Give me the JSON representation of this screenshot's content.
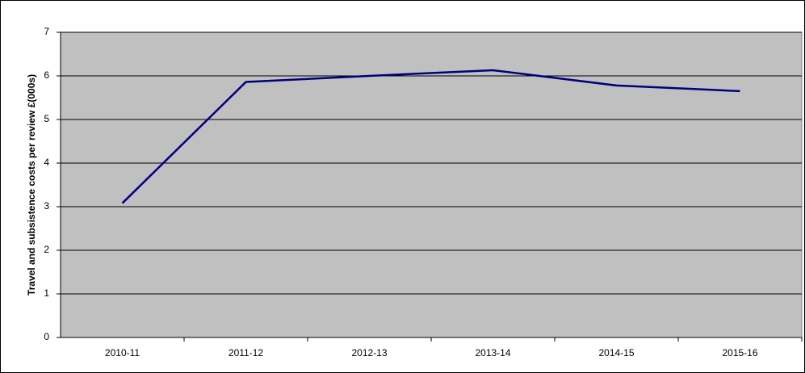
{
  "chart_data": {
    "type": "line",
    "y_label": "Travel and subsistence costs per review £(000s)",
    "categories": [
      "2010-11",
      "2011-12",
      "2012-13",
      "2013-14",
      "2014-15",
      "2015-16"
    ],
    "series": [
      {
        "color": "#000080",
        "values": [
          3.08,
          5.86,
          6.0,
          6.13,
          5.78,
          5.65
        ]
      }
    ],
    "ylim": [
      0,
      7
    ],
    "yticks": [
      0,
      1,
      2,
      3,
      4,
      5,
      6,
      7
    ],
    "grid": true,
    "plot_background": "#c0c0c0"
  }
}
